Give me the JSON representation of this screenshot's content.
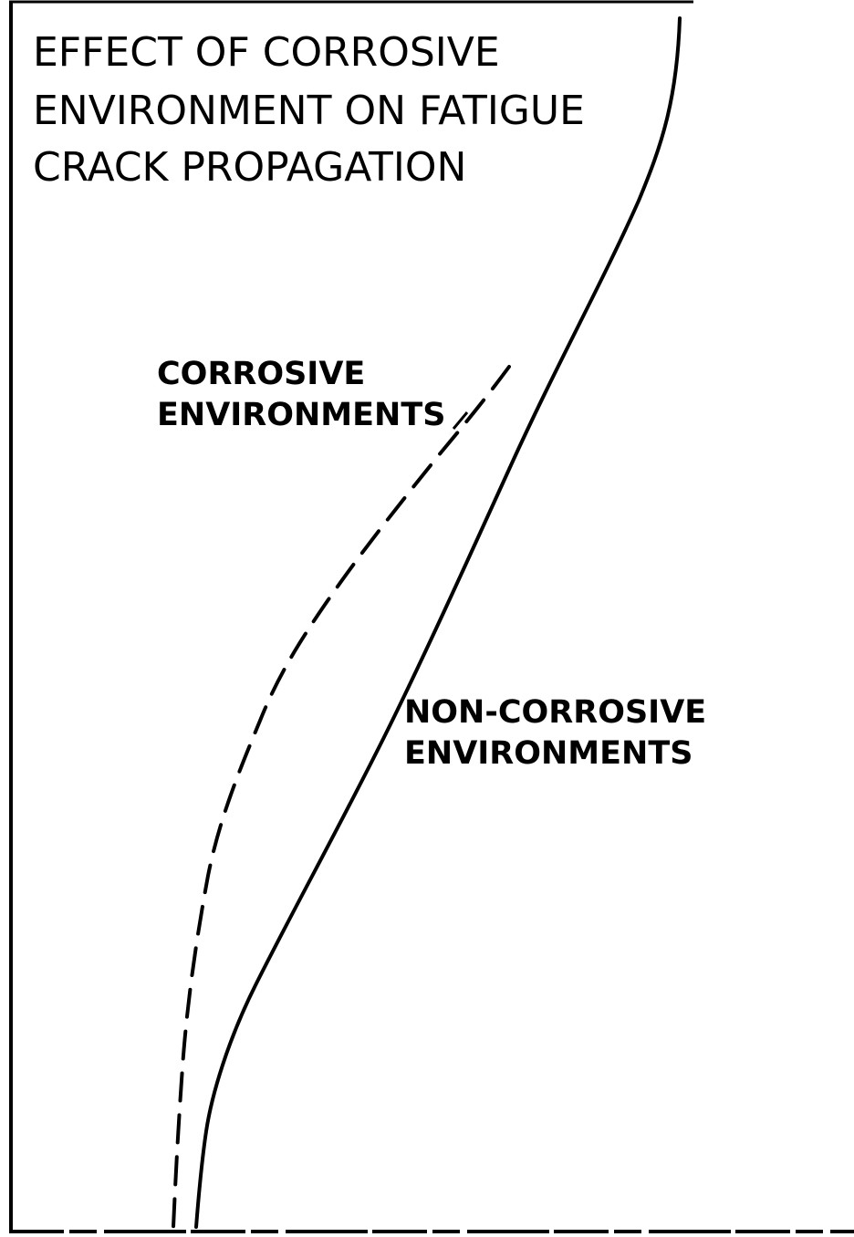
{
  "title": [
    "EFFECT OF CORROSIVE",
    "ENVIRONMENT ON FATIGUE",
    "CRACK PROPAGATION"
  ],
  "labels": {
    "corrosive": [
      "CORROSIVE",
      "ENVIRONMENTS"
    ],
    "non_corrosive": [
      "NON-CORROSIVE",
      "ENVIRONMENTS"
    ]
  }
}
